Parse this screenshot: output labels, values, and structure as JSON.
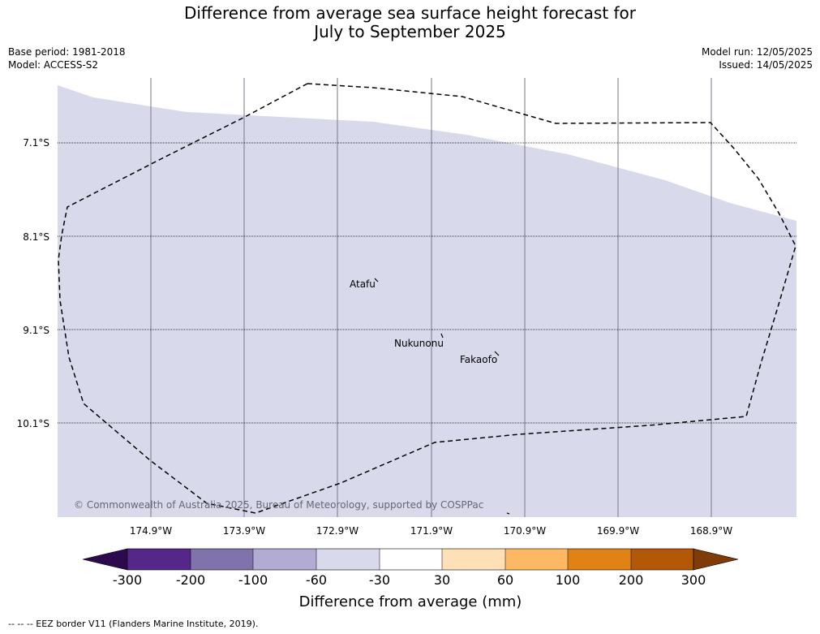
{
  "title_line1": "Difference from average sea surface height forecast for",
  "title_line2": "July to September 2025",
  "base_period": "Base period: 1981-2018",
  "model": "Model: ACCESS-S2",
  "model_run": "Model run: 12/05/2025",
  "issued": "Issued: 14/05/2025",
  "copyright": "© Commonwealth of Australia 2025, Bureau of Meteorology, supported by COSPPac",
  "lat_labels": [
    "7.1°S",
    "8.1°S",
    "9.1°S",
    "10.1°S"
  ],
  "lon_labels": [
    "174.9°W",
    "173.9°W",
    "172.9°W",
    "171.9°W",
    "170.9°W",
    "169.9°W",
    "168.9°W"
  ],
  "places": [
    "Atafu",
    "Nukunonu",
    "Fakaofo"
  ],
  "colorbar": {
    "label": "Difference from average (mm)",
    "ticks": [
      "-300",
      "-200",
      "-100",
      "-60",
      "-30",
      "30",
      "60",
      "100",
      "200",
      "300"
    ],
    "colors": [
      "#2d0a4e",
      "#542788",
      "#8073ac",
      "#b2abd2",
      "#d8daeb",
      "#ffffff",
      "#fee0b6",
      "#fdb863",
      "#e08214",
      "#b35806",
      "#7f3b08"
    ]
  },
  "footnote": "--  --  -- EEZ border V11 (Flanders Marine Institute, 2019).",
  "map_fill_color": "#d8daeb"
}
